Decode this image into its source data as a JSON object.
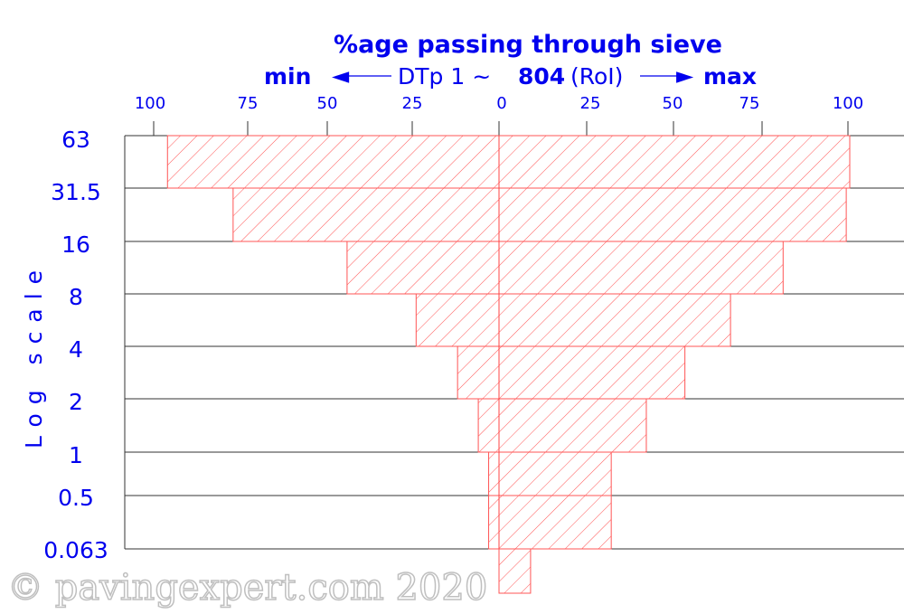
{
  "chart_data": {
    "type": "bar",
    "title": "%age passing through sieve",
    "subtitle": {
      "min_label": "min",
      "arrow_left": "◄",
      "prefix": "DTp 1 ~",
      "spec": "804",
      "suffix": "(RoI)",
      "arrow_right": "►",
      "max_label": "max"
    },
    "ylabel": "Log scale",
    "x_ticks_min": [
      "100",
      "75",
      "50",
      "25"
    ],
    "x_ticks_max": [
      "0",
      "25",
      "50",
      "75",
      "100"
    ],
    "xlim_min_side": [
      0,
      100
    ],
    "xlim_max_side": [
      0,
      100
    ],
    "categories": [
      "63",
      "31.5",
      "16",
      "8",
      "4",
      "2",
      "1",
      "0.5",
      "0.063"
    ],
    "series": [
      {
        "name": "min",
        "values": [
          96,
          77,
          44,
          24,
          12,
          6,
          3,
          null,
          3
        ]
      },
      {
        "name": "max",
        "values": [
          100,
          99,
          81,
          66,
          53,
          42,
          32,
          null,
          32
        ]
      }
    ],
    "extra_segment": {
      "min": 0,
      "max": 9
    },
    "colors": {
      "bar": "#ff6666",
      "text": "#0000ee",
      "grid": "#333333"
    }
  },
  "watermark": "© pavingexpert.com 2020"
}
